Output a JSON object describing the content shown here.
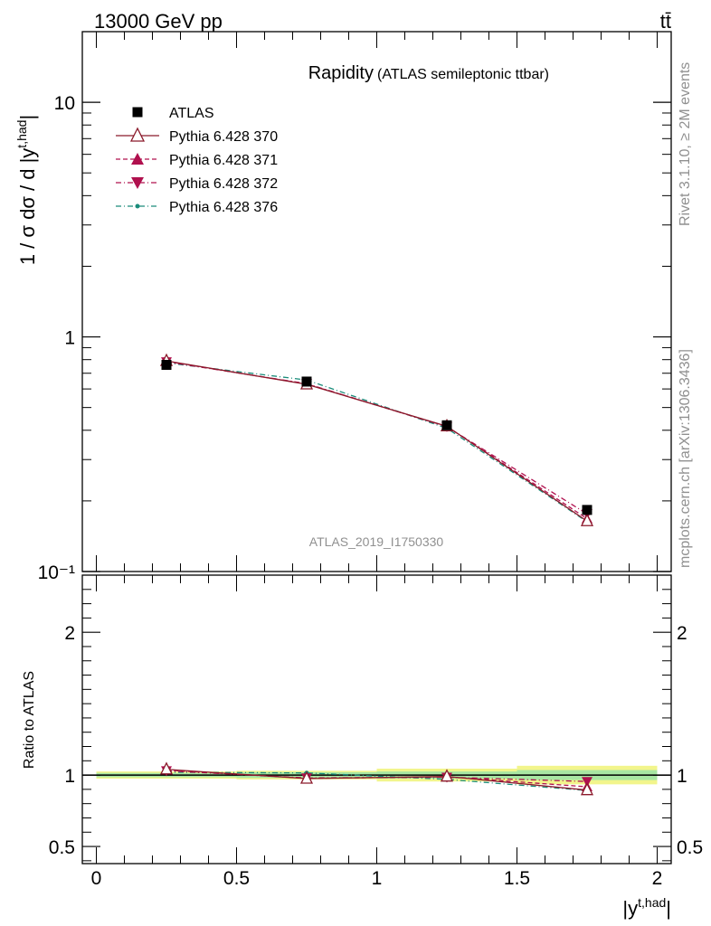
{
  "header": {
    "energy_label": "13000 GeV pp",
    "process_label": "tt̄"
  },
  "side_labels": {
    "rivet": "Rivet 3.1.10, ≥ 2M events",
    "source": "mcplots.cern.ch [arXiv:1306.3436]"
  },
  "chart_data": [
    {
      "type": "line",
      "title": "Rapidity",
      "subtitle": "(ATLAS semileptonic ttbar)",
      "ylabel": "1 / σ dσ / d |y^{t,had}|",
      "xlabel": "",
      "yscale": "log",
      "ylim": [
        0.1,
        20
      ],
      "xlim": [
        -0.05,
        2.05
      ],
      "ytick_labels": [
        "10⁻¹",
        "1",
        "10"
      ],
      "watermark": "ATLAS_2019_I1750330",
      "legend_position": "top-left",
      "x": [
        0.25,
        0.75,
        1.25,
        1.75
      ],
      "series": [
        {
          "name": "ATLAS",
          "values": [
            0.76,
            0.645,
            0.42,
            0.183
          ],
          "color": "#000000",
          "marker": "square"
        },
        {
          "name": "Pythia 6.428 370",
          "values": [
            0.79,
            0.628,
            0.416,
            0.164
          ],
          "color": "#8b1a2b",
          "marker": "open-triangle-up",
          "dash": "solid"
        },
        {
          "name": "Pythia 6.428 371",
          "values": [
            0.787,
            0.63,
            0.415,
            0.168
          ],
          "color": "#b0104e",
          "marker": "triangle-up",
          "dash": "dashed"
        },
        {
          "name": "Pythia 6.428 372",
          "values": [
            0.783,
            0.632,
            0.414,
            0.176
          ],
          "color": "#b0104e",
          "marker": "triangle-down",
          "dash": "dashdot"
        },
        {
          "name": "Pythia 6.428 376",
          "values": [
            0.775,
            0.655,
            0.408,
            0.163
          ],
          "color": "#1a8c7a",
          "marker": "dot",
          "dash": "dashdot"
        }
      ]
    },
    {
      "type": "line",
      "ylabel": "Ratio to ATLAS",
      "xlabel": "|y^{t,had}|",
      "ylim": [
        0.38,
        2.4
      ],
      "xlim": [
        -0.05,
        2.05
      ],
      "xtick_labels": [
        "0",
        "0.5",
        "1",
        "1.5",
        "2"
      ],
      "ytick_labels": [
        "0.5",
        "1",
        "2"
      ],
      "x": [
        0.25,
        0.75,
        1.25,
        1.75
      ],
      "bin_edges": [
        0,
        0.5,
        1,
        1.5,
        2
      ],
      "band_yellow": [
        0.025,
        0.03,
        0.045,
        0.065
      ],
      "band_green": [
        0.015,
        0.02,
        0.025,
        0.035
      ],
      "series": [
        {
          "name": "Pythia 6.428 370",
          "values": [
            1.04,
            0.975,
            0.99,
            0.895
          ]
        },
        {
          "name": "Pythia 6.428 371",
          "values": [
            1.035,
            0.977,
            0.988,
            0.918
          ]
        },
        {
          "name": "Pythia 6.428 372",
          "values": [
            1.03,
            0.98,
            0.985,
            0.955
          ]
        },
        {
          "name": "Pythia 6.428 376",
          "values": [
            1.02,
            1.015,
            0.97,
            0.892
          ]
        }
      ]
    }
  ]
}
